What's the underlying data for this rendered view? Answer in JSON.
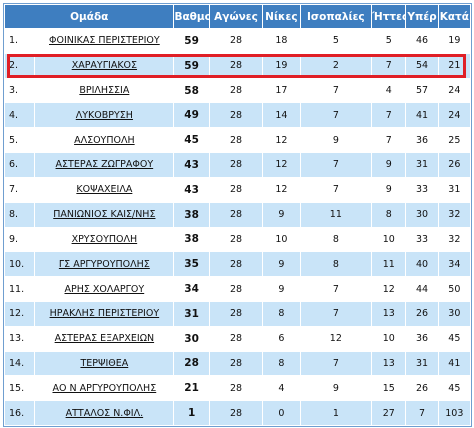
{
  "headers": {
    "team": "Ομάδα",
    "points": "Βαθμοί",
    "games": "Αγώνες",
    "wins": "Νίκες",
    "draws": "Ισοπαλίες",
    "losses": "Ήττες",
    "goals_for": "Υπέρ",
    "goals_against": "Κατά"
  },
  "highlight_color": "#e01f26",
  "rows": [
    {
      "pos": "1.",
      "team": "ΦΟΙΝΙΚΑΣ ΠΕΡΙΣΤΕΡΙΟΥ",
      "points": "59",
      "games": "28",
      "wins": "18",
      "draws": "5",
      "losses": "5",
      "gf": "46",
      "ga": "19"
    },
    {
      "pos": "2.",
      "team": "ΧΑΡΑΥΓΙΑΚΟΣ",
      "points": "59",
      "games": "28",
      "wins": "19",
      "draws": "2",
      "losses": "7",
      "gf": "54",
      "ga": "21"
    },
    {
      "pos": "3.",
      "team": "ΒΡΙΛΗΣΣΙΑ",
      "points": "58",
      "games": "28",
      "wins": "17",
      "draws": "7",
      "losses": "4",
      "gf": "57",
      "ga": "24"
    },
    {
      "pos": "4.",
      "team": "ΛΥΚΟΒΡΥΣΗ",
      "points": "49",
      "games": "28",
      "wins": "14",
      "draws": "7",
      "losses": "7",
      "gf": "41",
      "ga": "24"
    },
    {
      "pos": "5.",
      "team": "ΑΛΣΟΥΠΟΛΗ",
      "points": "45",
      "games": "28",
      "wins": "12",
      "draws": "9",
      "losses": "7",
      "gf": "36",
      "ga": "25"
    },
    {
      "pos": "6.",
      "team": "ΑΣΤΕΡΑΣ ΖΩΓΡΑΦΟΥ",
      "points": "43",
      "games": "28",
      "wins": "12",
      "draws": "7",
      "losses": "9",
      "gf": "31",
      "ga": "26"
    },
    {
      "pos": "7.",
      "team": "ΚΟΨΑΧΕΙΛΑ",
      "points": "43",
      "games": "28",
      "wins": "12",
      "draws": "7",
      "losses": "9",
      "gf": "33",
      "ga": "31"
    },
    {
      "pos": "8.",
      "team": "ΠΑΝΙΩΝΙΟΣ ΚΑΙΣ/ΝΗΣ",
      "points": "38",
      "games": "28",
      "wins": "9",
      "draws": "11",
      "losses": "8",
      "gf": "30",
      "ga": "32"
    },
    {
      "pos": "9.",
      "team": "ΧΡΥΣΟΥΠΟΛΗ",
      "points": "38",
      "games": "28",
      "wins": "10",
      "draws": "8",
      "losses": "10",
      "gf": "33",
      "ga": "32"
    },
    {
      "pos": "10.",
      "team": "ΓΣ ΑΡΓΥΡΟΥΠΟΛΗΣ",
      "points": "35",
      "games": "28",
      "wins": "9",
      "draws": "8",
      "losses": "11",
      "gf": "40",
      "ga": "34"
    },
    {
      "pos": "11.",
      "team": "ΑΡΗΣ ΧΟΛΑΡΓΟΥ",
      "points": "34",
      "games": "28",
      "wins": "9",
      "draws": "7",
      "losses": "12",
      "gf": "44",
      "ga": "50"
    },
    {
      "pos": "12.",
      "team": "ΗΡΑΚΛΗΣ ΠΕΡΙΣΤΕΡΙΟΥ",
      "points": "31",
      "games": "28",
      "wins": "8",
      "draws": "7",
      "losses": "13",
      "gf": "26",
      "ga": "30"
    },
    {
      "pos": "13.",
      "team": "ΑΣΤΕΡΑΣ ΕΞΑΡΧΕΙΩΝ",
      "points": "30",
      "games": "28",
      "wins": "6",
      "draws": "12",
      "losses": "10",
      "gf": "36",
      "ga": "45"
    },
    {
      "pos": "14.",
      "team": "ΤΕΡΨΙΘΕΑ",
      "points": "28",
      "games": "28",
      "wins": "8",
      "draws": "7",
      "losses": "13",
      "gf": "31",
      "ga": "41"
    },
    {
      "pos": "15.",
      "team": "ΑΟ Ν ΑΡΓΥΡΟΥΠΟΛΗΣ",
      "points": "21",
      "games": "28",
      "wins": "4",
      "draws": "9",
      "losses": "15",
      "gf": "26",
      "ga": "45"
    },
    {
      "pos": "16.",
      "team": "ΑΤΤΑΛΟΣ Ν.ΦΙΛ.",
      "points": "1",
      "games": "28",
      "wins": "0",
      "draws": "1",
      "losses": "27",
      "gf": "7",
      "ga": "103"
    }
  ]
}
